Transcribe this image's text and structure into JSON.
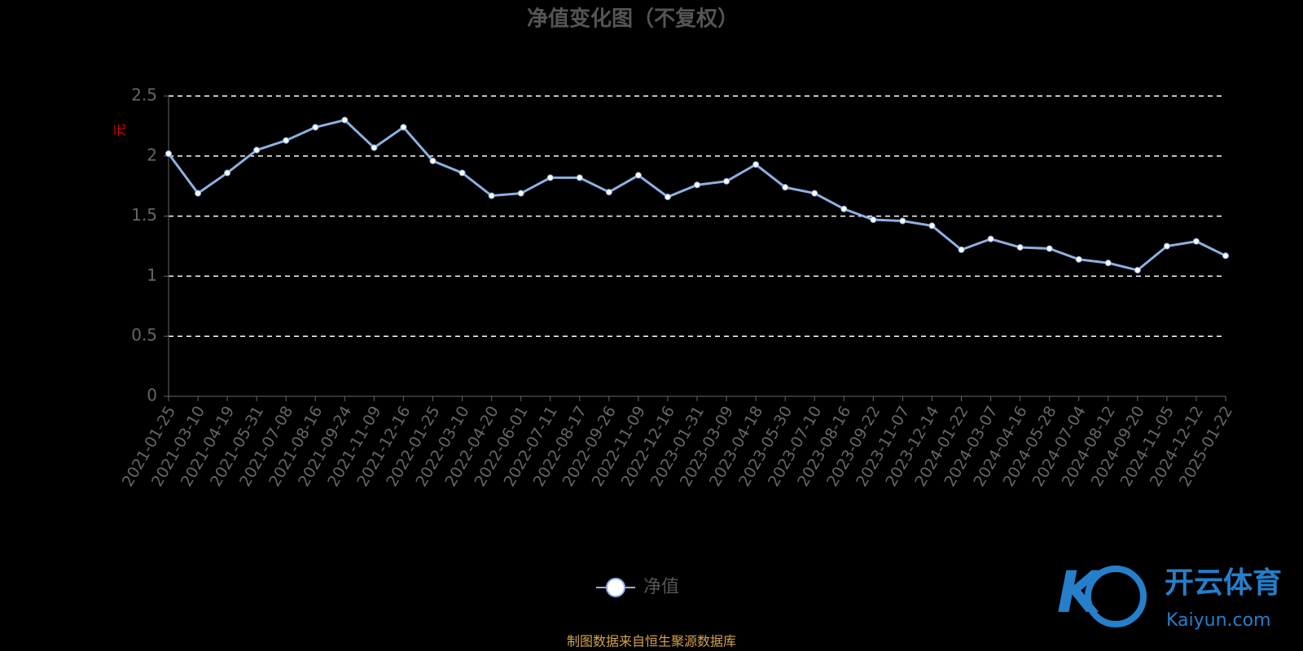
{
  "chart_data": {
    "type": "line",
    "title": "净值变化图（不复权）",
    "y_label": "元",
    "categories": [
      "2021-01-25",
      "2021-03-10",
      "2021-04-19",
      "2021-05-31",
      "2021-07-08",
      "2021-08-16",
      "2021-09-24",
      "2021-11-09",
      "2021-12-16",
      "2022-01-25",
      "2022-03-10",
      "2022-04-20",
      "2022-06-01",
      "2022-07-11",
      "2022-08-17",
      "2022-09-26",
      "2022-11-09",
      "2022-12-16",
      "2023-01-31",
      "2023-03-09",
      "2023-04-18",
      "2023-05-30",
      "2023-07-10",
      "2023-08-16",
      "2023-09-22",
      "2023-11-07",
      "2023-12-14",
      "2024-01-22",
      "2024-03-07",
      "2024-04-16",
      "2024-05-28",
      "2024-07-04",
      "2024-08-12",
      "2024-09-20",
      "2024-11-05",
      "2024-12-12",
      "2025-01-22"
    ],
    "series": [
      {
        "name": "净值",
        "color": "#8eb0e0",
        "values": [
          2.02,
          1.69,
          1.86,
          2.05,
          2.13,
          2.24,
          2.3,
          2.07,
          2.24,
          1.96,
          1.86,
          1.67,
          1.69,
          1.82,
          1.82,
          1.7,
          1.84,
          1.66,
          1.76,
          1.79,
          1.93,
          1.74,
          1.69,
          1.56,
          1.47,
          1.46,
          1.42,
          1.22,
          1.31,
          1.24,
          1.23,
          1.14,
          1.11,
          1.05,
          1.25,
          1.29,
          1.17
        ]
      }
    ],
    "ylim": [
      0,
      2.5
    ],
    "yticks": [
      0,
      0.5,
      1,
      1.5,
      2,
      2.5
    ],
    "grid": true
  },
  "source": "制图数据来自恒生聚源数据库",
  "watermark": {
    "name": "开云体育",
    "url": "Kaiyun.com"
  }
}
